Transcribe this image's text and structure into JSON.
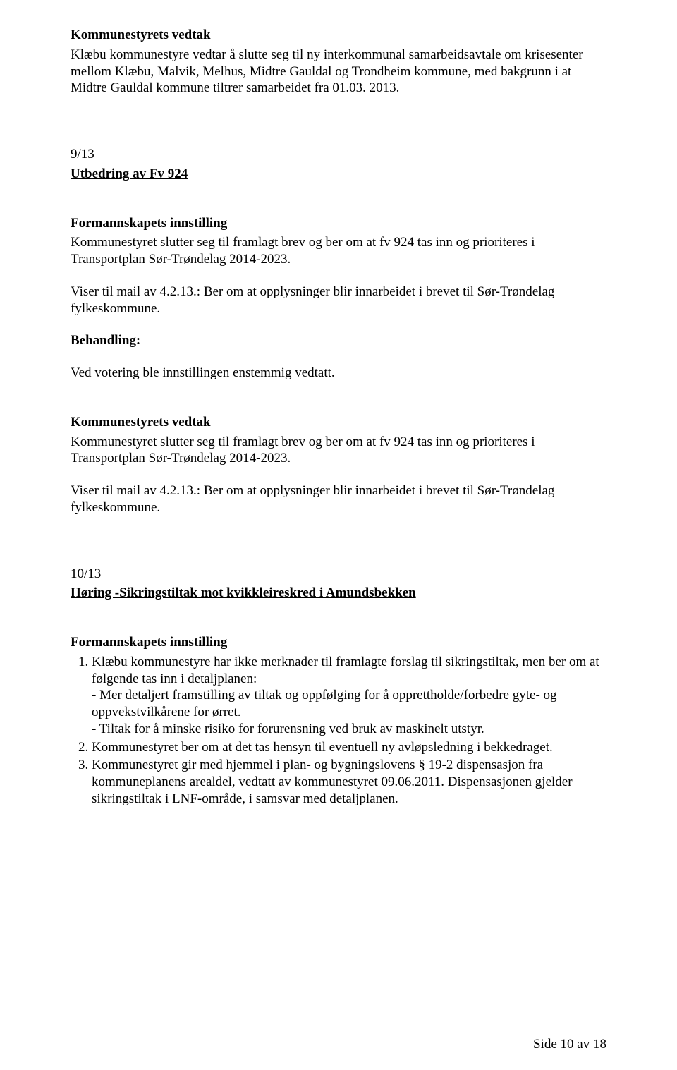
{
  "section1": {
    "heading": "Kommunestyrets vedtak",
    "body": "Klæbu kommunestyre vedtar å slutte seg til ny interkommunal samarbeidsavtale om krisesenter mellom Klæbu, Malvik, Melhus, Midtre Gauldal og Trondheim kommune, med bakgrunn i at Midtre Gauldal kommune tiltrer samarbeidet fra 01.03. 2013."
  },
  "item913": {
    "number": "9/13",
    "title": "Utbedring av Fv 924"
  },
  "section2": {
    "heading": "Formannskapets innstilling",
    "body1": "Kommunestyret slutter seg til framlagt brev og ber om at fv 924 tas inn og prioriteres i Transportplan Sør-Trøndelag 2014-2023.",
    "body2": "Viser til mail av 4.2.13.: Ber om at opplysninger blir innarbeidet i brevet til Sør-Trøndelag fylkeskommune."
  },
  "section3": {
    "heading": "Behandling:",
    "body": "Ved votering ble innstillingen enstemmig vedtatt."
  },
  "section4": {
    "heading": "Kommunestyrets vedtak",
    "body1": "Kommunestyret slutter seg til framlagt brev og ber om at fv 924 tas inn og prioriteres i Transportplan Sør-Trøndelag 2014-2023.",
    "body2": "Viser til mail av 4.2.13.: Ber om at opplysninger blir innarbeidet i brevet til Sør-Trøndelag fylkeskommune."
  },
  "item1013": {
    "number": "10/13",
    "title": "Høring -Sikringstiltak mot kvikkleireskred i Amundsbekken"
  },
  "section5": {
    "heading": "Formannskapets innstilling",
    "li1_lead": "Klæbu kommunestyre har ikke merknader til framlagte forslag til sikringstiltak, men ber om at følgende tas inn i detaljplanen:",
    "li1_a": "- Mer detaljert framstilling av tiltak og oppfølging for å opprettholde/forbedre gyte- og oppvekstvilkårene for ørret.",
    "li1_b": "- Tiltak for å minske risiko for forurensning ved bruk av maskinelt utstyr.",
    "li2": "Kommunestyret ber om at det tas hensyn til eventuell ny avløpsledning i bekkedraget.",
    "li3": "Kommunestyret gir med hjemmel i plan- og bygningslovens § 19-2 dispensasjon fra kommuneplanens arealdel, vedtatt av kommunestyret 09.06.2011. Dispensasjonen gjelder sikringstiltak i LNF-område, i samsvar med detaljplanen."
  },
  "footer": "Side 10 av 18"
}
